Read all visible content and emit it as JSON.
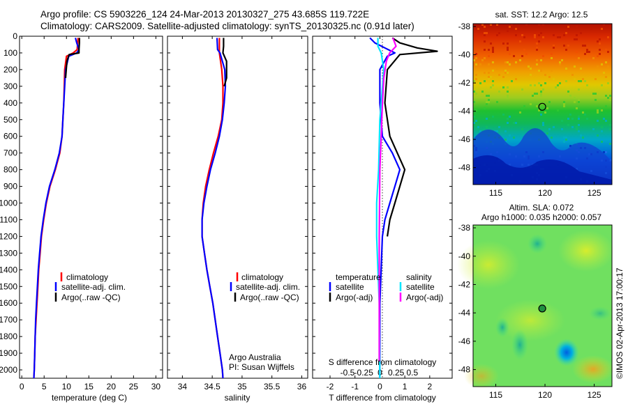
{
  "title_line1": "Argo profile: CS 5903226_124 24-Mar-2013 20130327_275 43.685S 119.722E",
  "title_line2": "Climatology: CARS2009. Satellite-adjusted climatology: synTS_20130325.nc (0.91d later)",
  "side_label": "©IMOS 02-Apr-2013 17:00:17",
  "colors": {
    "climatology": "#ff0000",
    "satellite": "#0000ff",
    "argo": "#000000",
    "sal_satellite": "#00e5ff",
    "sal_argo": "#ff00ff"
  },
  "chart_data": [
    {
      "id": "temperature",
      "type": "line",
      "xlabel": "temperature (deg C)",
      "xlim": [
        -0.5,
        31.5
      ],
      "xticks": [
        "0",
        "5",
        "10",
        "15",
        "20",
        "25",
        "30"
      ],
      "ylim": [
        2050,
        0
      ],
      "yticks": [
        "0",
        "100",
        "200",
        "300",
        "400",
        "500",
        "600",
        "700",
        "800",
        "900",
        "1000",
        "1100",
        "1200",
        "1300",
        "1400",
        "1500",
        "1600",
        "1700",
        "1800",
        "1900",
        "2000"
      ],
      "legend": [
        "climatology",
        "satellite-adj. clim.",
        "Argo(..raw -QC)"
      ],
      "series": [
        {
          "name": "climatology",
          "color": "#ff0000",
          "points": [
            [
              12.6,
              10
            ],
            [
              12.5,
              40
            ],
            [
              12.4,
              80
            ],
            [
              11.5,
              100
            ],
            [
              10,
              120
            ],
            [
              9.6,
              200
            ],
            [
              9.5,
              300
            ],
            [
              9.4,
              400
            ],
            [
              9.2,
              500
            ],
            [
              9,
              600
            ],
            [
              8.5,
              700
            ],
            [
              7.5,
              800
            ],
            [
              6.3,
              900
            ],
            [
              5.5,
              1000
            ],
            [
              4.9,
              1100
            ],
            [
              4.4,
              1200
            ],
            [
              4.1,
              1300
            ],
            [
              3.8,
              1400
            ],
            [
              3.6,
              1500
            ],
            [
              3.4,
              1600
            ],
            [
              3.2,
              1700
            ],
            [
              3.0,
              1800
            ],
            [
              2.9,
              1900
            ],
            [
              2.8,
              2000
            ],
            [
              2.7,
              2050
            ]
          ]
        },
        {
          "name": "satellite-adj. clim.",
          "color": "#0000ff",
          "points": [
            [
              12.0,
              10
            ],
            [
              12.3,
              40
            ],
            [
              12.8,
              80
            ],
            [
              12.3,
              100
            ],
            [
              10.5,
              120
            ],
            [
              9.8,
              200
            ],
            [
              9.6,
              300
            ],
            [
              9.4,
              400
            ],
            [
              9.2,
              500
            ],
            [
              9,
              600
            ],
            [
              8.4,
              700
            ],
            [
              7.4,
              800
            ],
            [
              6.2,
              900
            ],
            [
              5.4,
              1000
            ],
            [
              4.8,
              1100
            ],
            [
              4.3,
              1200
            ],
            [
              4.0,
              1300
            ],
            [
              3.7,
              1400
            ],
            [
              3.5,
              1500
            ],
            [
              3.3,
              1600
            ],
            [
              3.1,
              1700
            ],
            [
              3.0,
              1800
            ],
            [
              2.9,
              1900
            ],
            [
              2.8,
              2000
            ],
            [
              2.7,
              2050
            ]
          ]
        },
        {
          "name": "Argo(..raw -QC)",
          "color": "#000000",
          "points": [
            [
              12.9,
              10
            ],
            [
              12.9,
              40
            ],
            [
              12.8,
              80
            ],
            [
              12.8,
              100
            ],
            [
              10.6,
              110
            ],
            [
              10.1,
              150
            ],
            [
              9.8,
              250
            ]
          ]
        }
      ]
    },
    {
      "id": "salinity",
      "type": "line",
      "xlabel": "salinity",
      "xlim": [
        33.75,
        36.1
      ],
      "xticks": [
        "34",
        "34.5",
        "35",
        "35.5",
        "36"
      ],
      "ylim": [
        2050,
        0
      ],
      "legend": [
        "climatology",
        "satellite-adj. clim.",
        "Argo(..raw -QC)"
      ],
      "annotation": [
        "Argo Australia",
        "PI: Susan Wijffels"
      ],
      "series": [
        {
          "name": "climatology",
          "color": "#ff0000",
          "points": [
            [
              34.62,
              10
            ],
            [
              34.62,
              100
            ],
            [
              34.66,
              200
            ],
            [
              34.68,
              300
            ],
            [
              34.68,
              400
            ],
            [
              34.66,
              500
            ],
            [
              34.6,
              600
            ],
            [
              34.52,
              700
            ],
            [
              34.45,
              800
            ],
            [
              34.39,
              900
            ],
            [
              34.35,
              1000
            ],
            [
              34.33,
              1100
            ],
            [
              34.33,
              1200
            ],
            [
              34.37,
              1300
            ],
            [
              34.41,
              1400
            ],
            [
              34.46,
              1500
            ],
            [
              34.51,
              1600
            ],
            [
              34.55,
              1700
            ],
            [
              34.59,
              1800
            ],
            [
              34.63,
              1900
            ],
            [
              34.67,
              2000
            ],
            [
              34.68,
              2050
            ]
          ]
        },
        {
          "name": "satellite-adj. clim.",
          "color": "#0000ff",
          "points": [
            [
              34.58,
              10
            ],
            [
              34.59,
              80
            ],
            [
              34.63,
              100
            ],
            [
              34.71,
              200
            ],
            [
              34.72,
              300
            ],
            [
              34.7,
              400
            ],
            [
              34.67,
              500
            ],
            [
              34.62,
              600
            ],
            [
              34.55,
              700
            ],
            [
              34.47,
              800
            ],
            [
              34.41,
              900
            ],
            [
              34.36,
              1000
            ],
            [
              34.33,
              1100
            ],
            [
              34.33,
              1200
            ],
            [
              34.37,
              1300
            ],
            [
              34.41,
              1400
            ],
            [
              34.46,
              1500
            ],
            [
              34.51,
              1600
            ],
            [
              34.55,
              1700
            ],
            [
              34.59,
              1800
            ],
            [
              34.63,
              1900
            ],
            [
              34.67,
              2000
            ],
            [
              34.68,
              2050
            ]
          ]
        },
        {
          "name": "Argo(..raw -QC)",
          "color": "#000000",
          "points": [
            [
              34.69,
              10
            ],
            [
              34.69,
              60
            ],
            [
              34.68,
              100
            ],
            [
              34.74,
              150
            ],
            [
              34.74,
              250
            ],
            [
              34.7,
              300
            ]
          ]
        }
      ]
    },
    {
      "id": "difference",
      "type": "line",
      "xlabel": "T difference from climatology",
      "xlabel2": "S difference from climatology",
      "xlim": [
        -2.7,
        2.9
      ],
      "xticks": [
        "-2",
        "-1",
        "0",
        "1",
        "2"
      ],
      "xticks2": [
        "-0.5",
        "-0.25",
        "0",
        "0.25",
        "0.5"
      ],
      "ylim": [
        2050,
        0
      ],
      "legend_temperature": [
        "temperature",
        "satellite",
        "Argo(-adj)"
      ],
      "legend_salinity": [
        "salinity",
        "satellite",
        "Argo(-adj)"
      ],
      "series": [
        {
          "name": "temperature satellite",
          "color": "#0000ff",
          "points": [
            [
              -0.4,
              10
            ],
            [
              -0.2,
              40
            ],
            [
              0.2,
              70
            ],
            [
              0.6,
              100
            ],
            [
              0.3,
              120
            ],
            [
              0,
              200
            ],
            [
              0,
              400
            ],
            [
              0.1,
              600
            ],
            [
              0.5,
              700
            ],
            [
              0.8,
              800
            ],
            [
              0.6,
              900
            ],
            [
              0.4,
              1000
            ],
            [
              0.2,
              1100
            ],
            [
              0.1,
              1200
            ],
            [
              0.05,
              1400
            ],
            [
              0,
              1600
            ],
            [
              0,
              2050
            ]
          ]
        },
        {
          "name": "temperature Argo(-adj)",
          "color": "#000000",
          "points": [
            [
              0.5,
              10
            ],
            [
              0.8,
              40
            ],
            [
              1.5,
              70
            ],
            [
              2.3,
              90
            ],
            [
              0.8,
              110
            ],
            [
              0.3,
              200
            ],
            [
              0.2,
              400
            ],
            [
              0.4,
              600
            ],
            [
              0.7,
              700
            ],
            [
              1.0,
              800
            ],
            [
              0.8,
              900
            ],
            [
              0.6,
              1000
            ],
            [
              0.4,
              1100
            ],
            [
              0.3,
              1200
            ]
          ]
        },
        {
          "name": "salinity satellite",
          "color": "#00e5ff",
          "points": [
            [
              -0.03,
              10
            ],
            [
              -0.03,
              60
            ],
            [
              0.02,
              100
            ],
            [
              0.06,
              200
            ],
            [
              0.02,
              400
            ],
            [
              0.0,
              500
            ],
            [
              -0.02,
              800
            ],
            [
              -0.05,
              1000
            ],
            [
              -0.05,
              1200
            ],
            [
              -0.03,
              1400
            ],
            [
              -0.01,
              1600
            ],
            [
              0,
              2050
            ]
          ]
        },
        {
          "name": "salinity Argo(-adj)",
          "color": "#ff00ff",
          "points": [
            [
              0.2,
              10
            ],
            [
              0.25,
              60
            ],
            [
              0.15,
              100
            ],
            [
              0.1,
              150
            ],
            [
              0.06,
              250
            ],
            [
              0.04,
              400
            ],
            [
              0.0,
              800
            ],
            [
              -0.01,
              1200
            ],
            [
              -0.01,
              1900
            ],
            [
              -0.01,
              1950
            ]
          ]
        }
      ]
    },
    {
      "id": "sst_map",
      "type": "heatmap",
      "title": "sat. SST: 12.2 Argo: 12.5",
      "xticks": [
        "115",
        "120",
        "125"
      ],
      "yticks": [
        "-38",
        "-40",
        "-42",
        "-44",
        "-46",
        "-48"
      ],
      "xlim": [
        112.7,
        126.8
      ],
      "ylim": [
        -49.2,
        -37.8
      ],
      "marker": [
        119.72,
        -43.69
      ]
    },
    {
      "id": "sla_map",
      "type": "heatmap",
      "title_line1": "Altim. SLA: 0.072",
      "title_line2": "Argo h1000: 0.035 h2000: 0.057",
      "xticks": [
        "115",
        "120",
        "125"
      ],
      "yticks": [
        "-38",
        "-40",
        "-42",
        "-44",
        "-46",
        "-48"
      ],
      "xlim": [
        112.7,
        126.8
      ],
      "ylim": [
        -49.2,
        -37.8
      ],
      "marker": [
        119.72,
        -43.69
      ]
    }
  ]
}
